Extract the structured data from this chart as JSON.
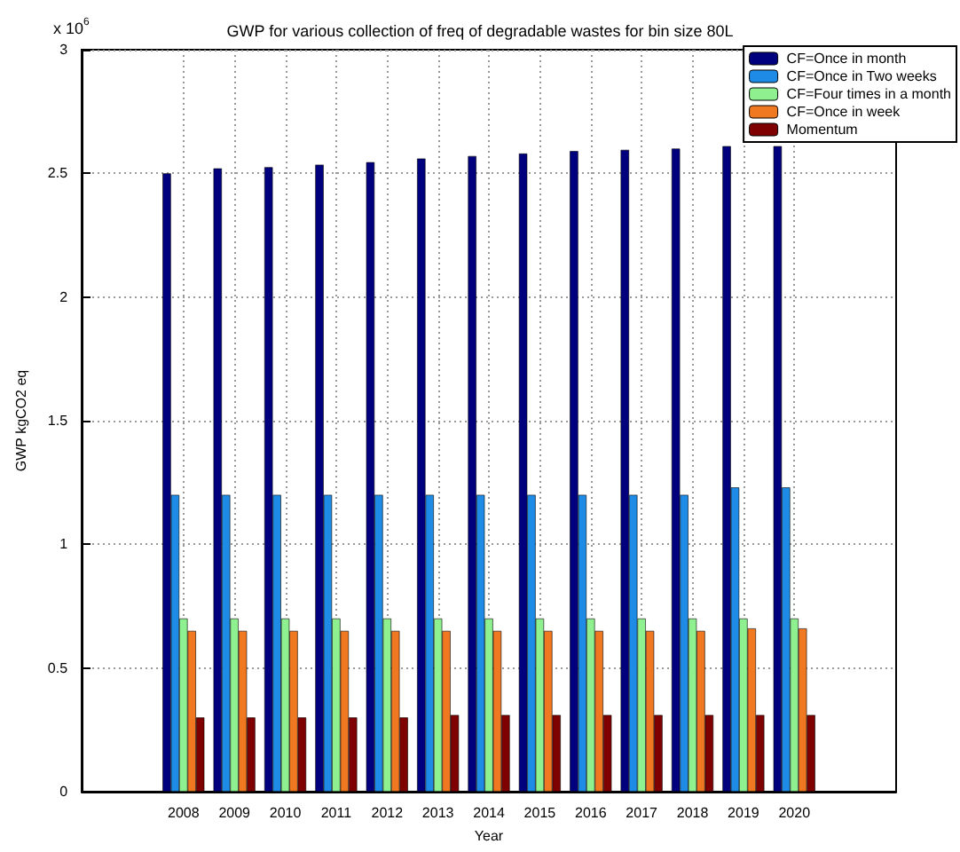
{
  "chart_data": {
    "type": "bar",
    "title": "GWP for various collection of freq of degradable wastes for bin size 80L",
    "xlabel": "Year",
    "ylabel": "GWP kgCO2 eq",
    "annotations": [
      "x 10$^{6}$"
    ],
    "x": [
      2008,
      2009,
      2010,
      2011,
      2012,
      2013,
      2014,
      2015,
      2016,
      2017,
      2018,
      2019,
      2020
    ],
    "xlim": [
      2006,
      2022
    ],
    "xticks": [
      2008,
      2009,
      2010,
      2011,
      2012,
      2013,
      2014,
      2015,
      2016,
      2017,
      2018,
      2019,
      2020
    ],
    "ylim": [
      0,
      3
    ],
    "yticks": [
      0,
      0.5,
      1,
      1.5,
      2,
      2.5,
      3
    ],
    "series": [
      {
        "name": "CF=Once in month",
        "color": "#00007f",
        "values": [
          2.5,
          2.52,
          2.525,
          2.535,
          2.545,
          2.56,
          2.57,
          2.58,
          2.59,
          2.595,
          2.6,
          2.61,
          2.61
        ]
      },
      {
        "name": "CF=Once in Two weeks",
        "color": "#1e8ce6",
        "values": [
          1.2,
          1.2,
          1.2,
          1.2,
          1.2,
          1.2,
          1.2,
          1.2,
          1.2,
          1.2,
          1.2,
          1.23,
          1.23
        ]
      },
      {
        "name": "CF=Four times in a month",
        "color": "#8ef08e",
        "values": [
          0.7,
          0.7,
          0.7,
          0.7,
          0.7,
          0.7,
          0.7,
          0.7,
          0.7,
          0.7,
          0.7,
          0.7,
          0.7
        ]
      },
      {
        "name": "CF=Once in week",
        "color": "#f07820",
        "values": [
          0.65,
          0.65,
          0.65,
          0.65,
          0.65,
          0.65,
          0.65,
          0.65,
          0.65,
          0.65,
          0.65,
          0.66,
          0.66
        ]
      },
      {
        "name": "Momentum",
        "color": "#7f0000",
        "values": [
          0.3,
          0.3,
          0.3,
          0.3,
          0.3,
          0.31,
          0.31,
          0.31,
          0.31,
          0.31,
          0.31,
          0.31,
          0.31
        ]
      }
    ],
    "grid": true,
    "legend": "top right"
  }
}
